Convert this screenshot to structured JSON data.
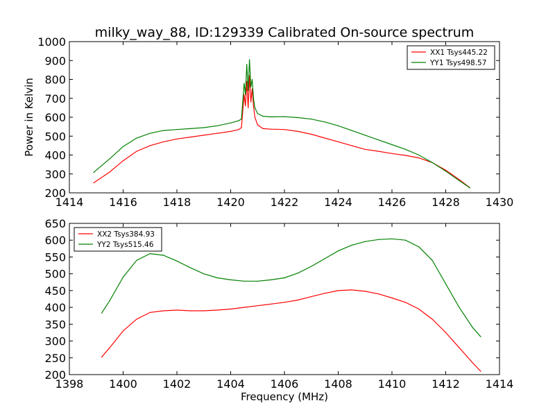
{
  "figure_title": "milky_way_88, ID:129339 Calibrated On-source spectrum",
  "chart_data": [
    {
      "type": "line",
      "title": "milky_way_88, ID:129339 Calibrated On-source spectrum",
      "xlabel": "",
      "ylabel": "Power in Kelvin",
      "xlim": [
        1414,
        1430
      ],
      "ylim": [
        200,
        1000
      ],
      "xticks": [
        1414,
        1416,
        1418,
        1420,
        1422,
        1424,
        1426,
        1428,
        1430
      ],
      "xtick_labels": [
        "1414",
        "1416",
        "1418",
        "1420",
        "1422",
        "1424",
        "1426",
        "1428",
        "1430"
      ],
      "yticks": [
        200,
        300,
        400,
        500,
        600,
        700,
        800,
        900,
        1000
      ],
      "ytick_labels": [
        "200",
        "300",
        "400",
        "500",
        "600",
        "700",
        "800",
        "900",
        "1000"
      ],
      "grid": false,
      "legend": "top-right",
      "series": [
        {
          "name": "XX1 Tsys445.22",
          "color": "#ff0000",
          "x": [
            1414.9,
            1415.5,
            1416.0,
            1416.5,
            1417.0,
            1417.5,
            1418.0,
            1418.5,
            1419.0,
            1419.5,
            1420.0,
            1420.3,
            1420.4,
            1420.5,
            1420.55,
            1420.6,
            1420.65,
            1420.7,
            1420.75,
            1420.8,
            1420.85,
            1420.9,
            1421.0,
            1421.2,
            1421.5,
            1422.0,
            1422.5,
            1423.0,
            1423.5,
            1424.0,
            1424.5,
            1425.0,
            1425.5,
            1426.0,
            1426.5,
            1427.0,
            1427.5,
            1428.0,
            1428.5,
            1428.9
          ],
          "y": [
            253,
            310,
            370,
            420,
            450,
            470,
            485,
            495,
            505,
            515,
            525,
            535,
            545,
            720,
            660,
            790,
            650,
            820,
            680,
            750,
            660,
            600,
            560,
            540,
            537,
            535,
            525,
            510,
            490,
            470,
            450,
            430,
            420,
            408,
            398,
            385,
            360,
            320,
            270,
            227
          ]
        },
        {
          "name": "YY1 Tsys498.57",
          "color": "#008000",
          "x": [
            1414.9,
            1415.5,
            1416.0,
            1416.5,
            1417.0,
            1417.5,
            1418.0,
            1418.5,
            1419.0,
            1419.5,
            1420.0,
            1420.3,
            1420.4,
            1420.5,
            1420.55,
            1420.6,
            1420.65,
            1420.7,
            1420.75,
            1420.8,
            1420.85,
            1420.9,
            1421.0,
            1421.2,
            1421.5,
            1422.0,
            1422.5,
            1423.0,
            1423.5,
            1424.0,
            1424.5,
            1425.0,
            1425.5,
            1426.0,
            1426.5,
            1427.0,
            1427.5,
            1428.0,
            1428.5,
            1428.9
          ],
          "y": [
            308,
            380,
            445,
            490,
            515,
            530,
            535,
            540,
            545,
            555,
            570,
            582,
            590,
            780,
            720,
            880,
            740,
            905,
            760,
            800,
            700,
            650,
            620,
            605,
            602,
            603,
            598,
            590,
            575,
            555,
            530,
            505,
            480,
            455,
            430,
            400,
            360,
            315,
            265,
            226
          ]
        }
      ]
    },
    {
      "type": "line",
      "title": "",
      "xlabel": "Frequency (MHz)",
      "ylabel": "",
      "xlim": [
        1398,
        1414
      ],
      "ylim": [
        200,
        650
      ],
      "xticks": [
        1398,
        1400,
        1402,
        1404,
        1406,
        1408,
        1410,
        1412,
        1414
      ],
      "xtick_labels": [
        "1398",
        "1400",
        "1402",
        "1404",
        "1406",
        "1408",
        "1410",
        "1412",
        "1414"
      ],
      "yticks": [
        200,
        250,
        300,
        350,
        400,
        450,
        500,
        550,
        600,
        650
      ],
      "ytick_labels": [
        "200",
        "250",
        "300",
        "350",
        "400",
        "450",
        "500",
        "550",
        "600",
        "650"
      ],
      "grid": false,
      "legend": "top-left",
      "series": [
        {
          "name": "XX2 Tsys384.93",
          "color": "#ff0000",
          "x": [
            1399.2,
            1399.5,
            1400.0,
            1400.5,
            1401.0,
            1401.5,
            1402.0,
            1402.5,
            1403.0,
            1403.5,
            1404.0,
            1404.5,
            1405.0,
            1405.5,
            1406.0,
            1406.5,
            1407.0,
            1407.5,
            1408.0,
            1408.5,
            1409.0,
            1409.5,
            1410.0,
            1410.5,
            1411.0,
            1411.5,
            1412.0,
            1412.5,
            1413.0,
            1413.3
          ],
          "y": [
            252,
            280,
            330,
            365,
            385,
            390,
            392,
            390,
            390,
            392,
            395,
            400,
            405,
            410,
            415,
            422,
            432,
            442,
            450,
            452,
            448,
            440,
            428,
            415,
            395,
            365,
            325,
            280,
            235,
            210
          ]
        },
        {
          "name": "YY2 Tsys515.46",
          "color": "#008000",
          "x": [
            1399.2,
            1399.5,
            1400.0,
            1400.5,
            1401.0,
            1401.5,
            1402.0,
            1402.5,
            1403.0,
            1403.5,
            1404.0,
            1404.5,
            1405.0,
            1405.5,
            1406.0,
            1406.5,
            1407.0,
            1407.5,
            1408.0,
            1408.5,
            1409.0,
            1409.5,
            1410.0,
            1410.5,
            1411.0,
            1411.5,
            1412.0,
            1412.5,
            1413.0,
            1413.3
          ],
          "y": [
            383,
            420,
            490,
            540,
            560,
            555,
            538,
            518,
            500,
            488,
            482,
            478,
            478,
            482,
            488,
            502,
            522,
            545,
            568,
            585,
            596,
            602,
            604,
            600,
            580,
            540,
            470,
            400,
            340,
            313
          ]
        }
      ]
    }
  ]
}
